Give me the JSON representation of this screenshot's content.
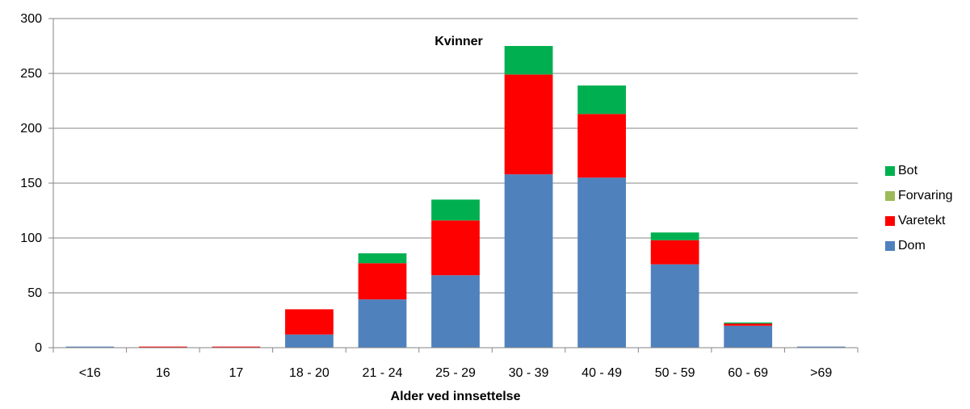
{
  "chart_data": {
    "type": "bar",
    "stacked": true,
    "title": "Kvinner",
    "xlabel": "Alder ved innsettelse",
    "ylabel": "",
    "ylim": [
      0,
      300
    ],
    "yticks": [
      "0",
      "50",
      "100",
      "150",
      "200",
      "250",
      "300"
    ],
    "grid": true,
    "legend_position": "right",
    "categories": [
      "<16",
      "16",
      "17",
      "18 - 20",
      "21 - 24",
      "25 - 29",
      "30 - 39",
      "40 - 49",
      "50 - 59",
      "60 - 69",
      ">69"
    ],
    "series": [
      {
        "name": "Dom",
        "color": "#4F81BD",
        "values": [
          1,
          0,
          0,
          12,
          44,
          66,
          158,
          155,
          76,
          20,
          1
        ]
      },
      {
        "name": "Varetekt",
        "color": "#FF0000",
        "values": [
          0,
          1,
          1,
          23,
          33,
          50,
          91,
          58,
          22,
          2,
          0
        ]
      },
      {
        "name": "Forvaring",
        "color": "#9BBB59",
        "values": [
          0,
          0,
          0,
          0,
          0,
          0,
          0,
          0,
          0,
          0,
          0
        ]
      },
      {
        "name": "Bot",
        "color": "#00B050",
        "values": [
          0,
          0,
          0,
          0,
          9,
          19,
          26,
          26,
          7,
          1,
          0
        ]
      }
    ],
    "legend_order": [
      "Bot",
      "Forvaring",
      "Varetekt",
      "Dom"
    ]
  }
}
